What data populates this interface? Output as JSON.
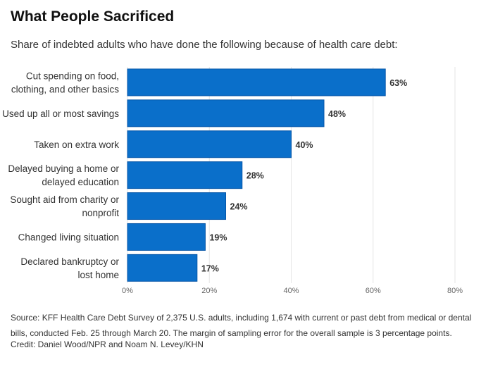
{
  "title": "What People Sacrificed",
  "subtitle": "Share of indebted adults who have done the following because of health care debt:",
  "source": "Source: KFF Health Care Debt Survey of 2,375 U.S. adults, including 1,674 with current or past debt from medical or dental bills, conducted Feb. 25 through March 20. The margin of sampling error for the overall sample is 3 percentage points.",
  "credit": "Credit: Daniel Wood/NPR and Noam N. Levey/KHN",
  "colors": {
    "bar": "#0a6fca",
    "bar_edge": "#0556a8",
    "grid": "#e6e6e6"
  },
  "chart_data": {
    "type": "bar",
    "orientation": "horizontal",
    "categories": [
      [
        "Cut spending on food,",
        "clothing, and other basics"
      ],
      [
        "Used up all or most savings"
      ],
      [
        "Taken on extra work"
      ],
      [
        "Delayed buying a home or",
        "delayed education"
      ],
      [
        "Sought aid from charity or",
        "nonprofit"
      ],
      [
        "Changed living situation"
      ],
      [
        "Declared bankruptcy or",
        "lost home"
      ]
    ],
    "values": [
      63,
      48,
      40,
      28,
      24,
      19,
      17
    ],
    "value_labels": [
      "63%",
      "48%",
      "40%",
      "28%",
      "24%",
      "19%",
      "17%"
    ],
    "xlim": [
      0,
      80
    ],
    "xticks": [
      0,
      20,
      40,
      60,
      80
    ],
    "xtick_labels": [
      "0%",
      "20%",
      "40%",
      "60%",
      "80%"
    ],
    "grid": true
  }
}
